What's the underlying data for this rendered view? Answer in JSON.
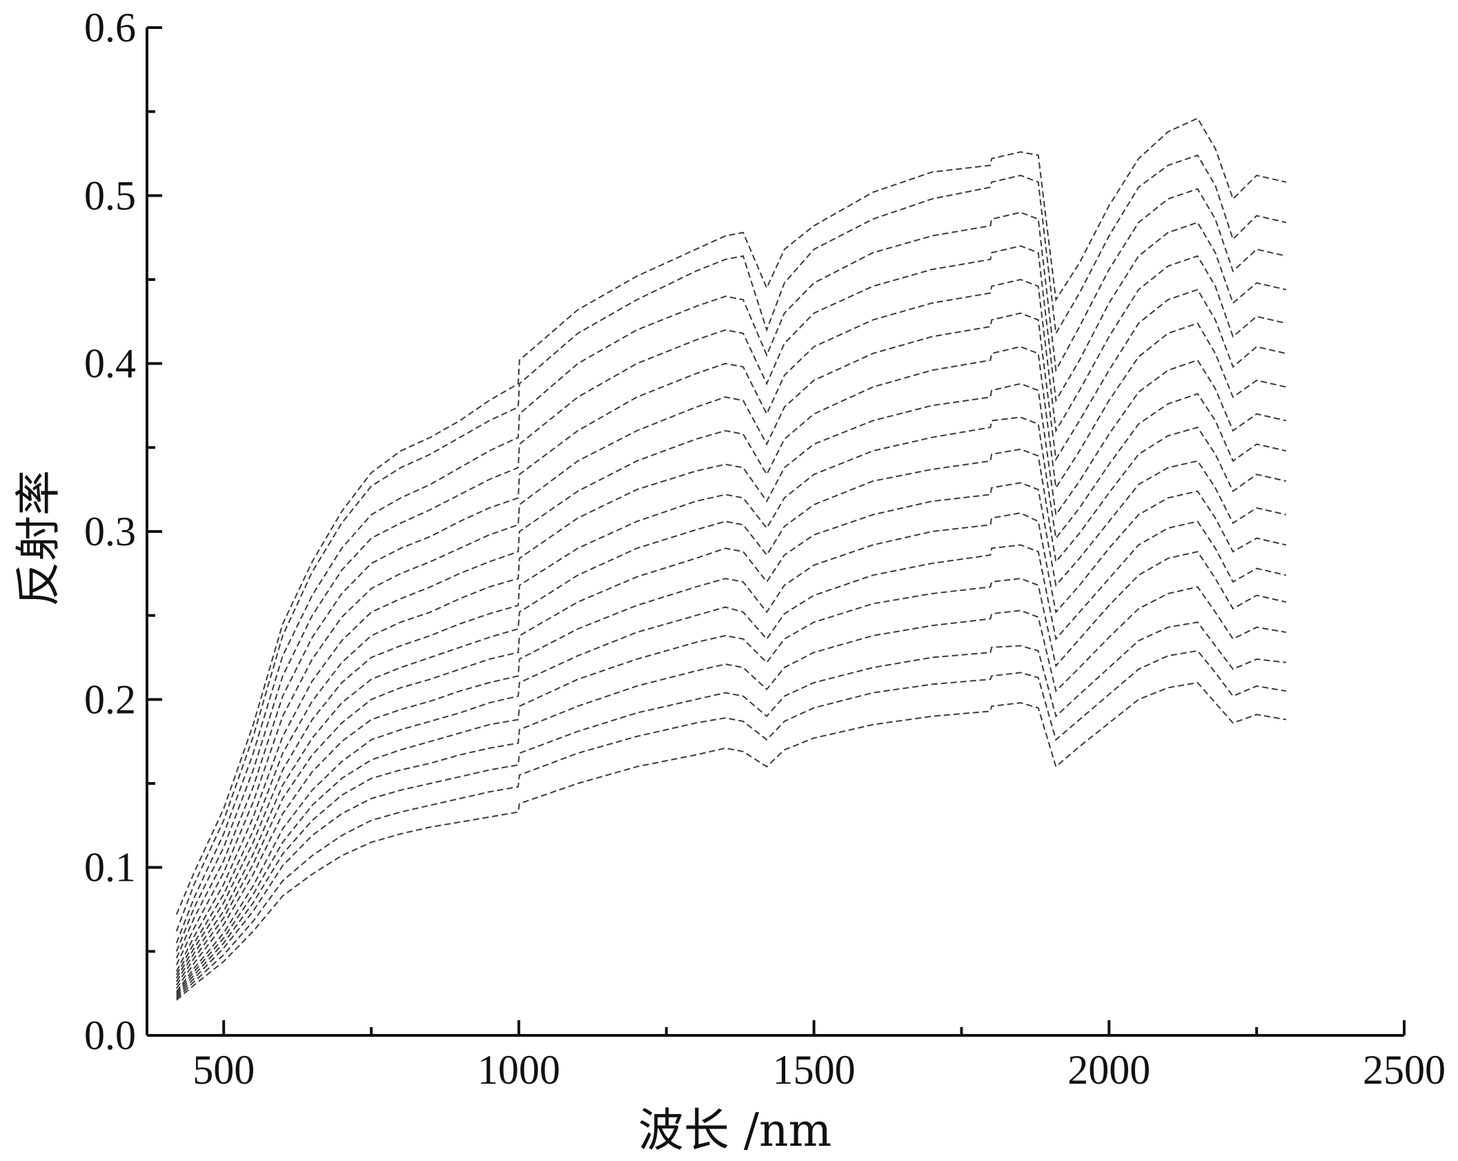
{
  "chart_data": {
    "type": "line",
    "title": "",
    "xlabel": "波长 /nm",
    "ylabel": "反射率",
    "xlim": [
      370,
      2500
    ],
    "ylim": [
      0,
      0.6
    ],
    "x_ticks": [
      {
        "value": 500,
        "label": "500"
      },
      {
        "value": 1000,
        "label": "1000"
      },
      {
        "value": 1500,
        "label": "1500"
      },
      {
        "value": 2000,
        "label": "2000"
      },
      {
        "value": 2500,
        "label": "2500"
      }
    ],
    "x_minor_ticks": [
      750,
      1250,
      1750,
      2250
    ],
    "y_ticks": [
      {
        "value": 0.0,
        "label": "0.0"
      },
      {
        "value": 0.1,
        "label": "0.1"
      },
      {
        "value": 0.2,
        "label": "0.2"
      },
      {
        "value": 0.3,
        "label": "0.3"
      },
      {
        "value": 0.4,
        "label": "0.4"
      },
      {
        "value": 0.5,
        "label": "0.5"
      },
      {
        "value": 0.6,
        "label": "0.6"
      }
    ],
    "y_minor_ticks": [
      0.05,
      0.15,
      0.25,
      0.35,
      0.45,
      0.55
    ],
    "grid": false,
    "legend": "none",
    "line_style": "dashed",
    "line_color": "#3a3a3a",
    "x": [
      420,
      450,
      500,
      550,
      600,
      650,
      700,
      750,
      800,
      850,
      900,
      950,
      999,
      1001,
      1100,
      1200,
      1300,
      1350,
      1380,
      1420,
      1450,
      1500,
      1600,
      1700,
      1799,
      1801,
      1850,
      1880,
      1910,
      1950,
      2000,
      2050,
      2100,
      2150,
      2180,
      2210,
      2250,
      2300
    ],
    "series": [
      {
        "values": [
          0.072,
          0.097,
          0.135,
          0.185,
          0.245,
          0.282,
          0.312,
          0.335,
          0.348,
          0.356,
          0.366,
          0.378,
          0.388,
          0.402,
          0.432,
          0.452,
          0.468,
          0.476,
          0.478,
          0.445,
          0.468,
          0.482,
          0.502,
          0.514,
          0.518,
          0.522,
          0.526,
          0.524,
          0.438,
          0.46,
          0.494,
          0.522,
          0.538,
          0.546,
          0.528,
          0.498,
          0.512,
          0.508
        ]
      },
      {
        "values": [
          0.062,
          0.09,
          0.128,
          0.178,
          0.238,
          0.276,
          0.305,
          0.327,
          0.338,
          0.346,
          0.356,
          0.366,
          0.374,
          0.388,
          0.418,
          0.438,
          0.455,
          0.462,
          0.464,
          0.42,
          0.448,
          0.468,
          0.486,
          0.498,
          0.505,
          0.508,
          0.512,
          0.508,
          0.418,
          0.442,
          0.476,
          0.505,
          0.518,
          0.524,
          0.506,
          0.474,
          0.488,
          0.484
        ]
      },
      {
        "values": [
          0.055,
          0.082,
          0.12,
          0.168,
          0.226,
          0.262,
          0.29,
          0.31,
          0.32,
          0.328,
          0.338,
          0.348,
          0.356,
          0.37,
          0.4,
          0.42,
          0.434,
          0.44,
          0.438,
          0.405,
          0.43,
          0.448,
          0.466,
          0.476,
          0.482,
          0.486,
          0.49,
          0.486,
          0.396,
          0.422,
          0.456,
          0.484,
          0.498,
          0.504,
          0.486,
          0.455,
          0.468,
          0.464
        ]
      },
      {
        "values": [
          0.05,
          0.076,
          0.112,
          0.158,
          0.214,
          0.25,
          0.277,
          0.296,
          0.305,
          0.313,
          0.322,
          0.331,
          0.338,
          0.352,
          0.38,
          0.4,
          0.414,
          0.42,
          0.418,
          0.388,
          0.412,
          0.43,
          0.446,
          0.456,
          0.462,
          0.466,
          0.47,
          0.466,
          0.378,
          0.402,
          0.436,
          0.464,
          0.478,
          0.484,
          0.466,
          0.436,
          0.448,
          0.444
        ]
      },
      {
        "values": [
          0.046,
          0.07,
          0.104,
          0.148,
          0.202,
          0.237,
          0.263,
          0.281,
          0.29,
          0.297,
          0.306,
          0.314,
          0.32,
          0.334,
          0.36,
          0.38,
          0.394,
          0.4,
          0.398,
          0.37,
          0.393,
          0.41,
          0.426,
          0.436,
          0.442,
          0.446,
          0.45,
          0.446,
          0.36,
          0.384,
          0.416,
          0.444,
          0.458,
          0.464,
          0.446,
          0.416,
          0.428,
          0.424
        ]
      },
      {
        "values": [
          0.042,
          0.064,
          0.097,
          0.139,
          0.19,
          0.224,
          0.249,
          0.266,
          0.275,
          0.282,
          0.29,
          0.298,
          0.304,
          0.316,
          0.342,
          0.36,
          0.374,
          0.38,
          0.378,
          0.352,
          0.374,
          0.39,
          0.406,
          0.416,
          0.422,
          0.426,
          0.43,
          0.426,
          0.343,
          0.366,
          0.396,
          0.424,
          0.438,
          0.444,
          0.426,
          0.398,
          0.41,
          0.406
        ]
      },
      {
        "values": [
          0.038,
          0.059,
          0.09,
          0.13,
          0.178,
          0.211,
          0.235,
          0.252,
          0.26,
          0.267,
          0.275,
          0.282,
          0.288,
          0.3,
          0.324,
          0.342,
          0.355,
          0.36,
          0.358,
          0.334,
          0.355,
          0.37,
          0.386,
          0.396,
          0.402,
          0.406,
          0.41,
          0.406,
          0.326,
          0.348,
          0.378,
          0.404,
          0.418,
          0.424,
          0.406,
          0.38,
          0.39,
          0.386
        ]
      },
      {
        "values": [
          0.036,
          0.055,
          0.084,
          0.122,
          0.168,
          0.199,
          0.222,
          0.238,
          0.246,
          0.252,
          0.26,
          0.267,
          0.272,
          0.284,
          0.308,
          0.325,
          0.336,
          0.34,
          0.338,
          0.318,
          0.338,
          0.352,
          0.366,
          0.375,
          0.38,
          0.384,
          0.388,
          0.384,
          0.31,
          0.33,
          0.358,
          0.383,
          0.396,
          0.402,
          0.385,
          0.36,
          0.37,
          0.366
        ]
      },
      {
        "values": [
          0.034,
          0.052,
          0.079,
          0.115,
          0.158,
          0.188,
          0.21,
          0.225,
          0.232,
          0.238,
          0.245,
          0.251,
          0.256,
          0.268,
          0.29,
          0.306,
          0.318,
          0.322,
          0.32,
          0.302,
          0.32,
          0.334,
          0.348,
          0.356,
          0.362,
          0.366,
          0.368,
          0.364,
          0.296,
          0.314,
          0.34,
          0.364,
          0.376,
          0.382,
          0.366,
          0.342,
          0.352,
          0.348
        ]
      },
      {
        "values": [
          0.032,
          0.049,
          0.074,
          0.108,
          0.149,
          0.177,
          0.198,
          0.212,
          0.219,
          0.225,
          0.231,
          0.237,
          0.242,
          0.252,
          0.274,
          0.29,
          0.301,
          0.306,
          0.304,
          0.286,
          0.303,
          0.316,
          0.33,
          0.337,
          0.342,
          0.346,
          0.349,
          0.345,
          0.282,
          0.299,
          0.323,
          0.346,
          0.357,
          0.362,
          0.346,
          0.324,
          0.334,
          0.33
        ]
      },
      {
        "values": [
          0.03,
          0.046,
          0.07,
          0.102,
          0.141,
          0.167,
          0.186,
          0.2,
          0.207,
          0.212,
          0.218,
          0.224,
          0.228,
          0.238,
          0.258,
          0.273,
          0.284,
          0.29,
          0.288,
          0.27,
          0.286,
          0.298,
          0.31,
          0.318,
          0.322,
          0.326,
          0.329,
          0.325,
          0.268,
          0.284,
          0.306,
          0.328,
          0.338,
          0.342,
          0.326,
          0.305,
          0.314,
          0.31
        ]
      },
      {
        "values": [
          0.028,
          0.043,
          0.066,
          0.096,
          0.132,
          0.157,
          0.175,
          0.188,
          0.194,
          0.199,
          0.205,
          0.21,
          0.214,
          0.224,
          0.242,
          0.256,
          0.267,
          0.272,
          0.27,
          0.252,
          0.268,
          0.28,
          0.292,
          0.3,
          0.304,
          0.308,
          0.311,
          0.306,
          0.252,
          0.268,
          0.29,
          0.31,
          0.32,
          0.324,
          0.308,
          0.288,
          0.296,
          0.292
        ]
      },
      {
        "values": [
          0.026,
          0.04,
          0.061,
          0.089,
          0.123,
          0.146,
          0.163,
          0.176,
          0.182,
          0.187,
          0.192,
          0.198,
          0.202,
          0.21,
          0.226,
          0.24,
          0.25,
          0.255,
          0.252,
          0.236,
          0.251,
          0.262,
          0.274,
          0.281,
          0.286,
          0.29,
          0.292,
          0.288,
          0.236,
          0.252,
          0.272,
          0.292,
          0.302,
          0.306,
          0.29,
          0.27,
          0.278,
          0.274
        ]
      },
      {
        "values": [
          0.025,
          0.038,
          0.058,
          0.084,
          0.115,
          0.137,
          0.153,
          0.164,
          0.17,
          0.175,
          0.18,
          0.185,
          0.188,
          0.196,
          0.212,
          0.224,
          0.234,
          0.238,
          0.236,
          0.222,
          0.236,
          0.246,
          0.257,
          0.263,
          0.267,
          0.27,
          0.272,
          0.268,
          0.22,
          0.236,
          0.256,
          0.274,
          0.284,
          0.288,
          0.272,
          0.254,
          0.262,
          0.258
        ]
      },
      {
        "values": [
          0.024,
          0.036,
          0.055,
          0.079,
          0.108,
          0.128,
          0.143,
          0.153,
          0.158,
          0.162,
          0.167,
          0.171,
          0.174,
          0.182,
          0.196,
          0.208,
          0.217,
          0.221,
          0.219,
          0.206,
          0.219,
          0.228,
          0.238,
          0.244,
          0.248,
          0.251,
          0.253,
          0.249,
          0.205,
          0.219,
          0.237,
          0.254,
          0.263,
          0.267,
          0.252,
          0.236,
          0.243,
          0.24
        ]
      },
      {
        "values": [
          0.023,
          0.034,
          0.052,
          0.074,
          0.101,
          0.119,
          0.132,
          0.141,
          0.146,
          0.15,
          0.154,
          0.158,
          0.161,
          0.168,
          0.181,
          0.192,
          0.2,
          0.204,
          0.202,
          0.19,
          0.202,
          0.21,
          0.219,
          0.225,
          0.228,
          0.231,
          0.232,
          0.229,
          0.19,
          0.203,
          0.219,
          0.235,
          0.243,
          0.246,
          0.232,
          0.218,
          0.224,
          0.222
        ]
      },
      {
        "values": [
          0.022,
          0.032,
          0.048,
          0.068,
          0.092,
          0.107,
          0.119,
          0.128,
          0.133,
          0.137,
          0.141,
          0.145,
          0.148,
          0.155,
          0.168,
          0.178,
          0.186,
          0.189,
          0.187,
          0.176,
          0.187,
          0.195,
          0.204,
          0.209,
          0.212,
          0.214,
          0.216,
          0.213,
          0.176,
          0.188,
          0.203,
          0.218,
          0.226,
          0.229,
          0.216,
          0.202,
          0.208,
          0.205
        ]
      },
      {
        "values": [
          0.021,
          0.03,
          0.044,
          0.062,
          0.083,
          0.096,
          0.107,
          0.115,
          0.12,
          0.124,
          0.127,
          0.13,
          0.133,
          0.138,
          0.15,
          0.16,
          0.167,
          0.171,
          0.169,
          0.16,
          0.17,
          0.177,
          0.185,
          0.19,
          0.193,
          0.196,
          0.198,
          0.195,
          0.16,
          0.172,
          0.186,
          0.2,
          0.207,
          0.21,
          0.198,
          0.186,
          0.191,
          0.188
        ]
      }
    ]
  }
}
